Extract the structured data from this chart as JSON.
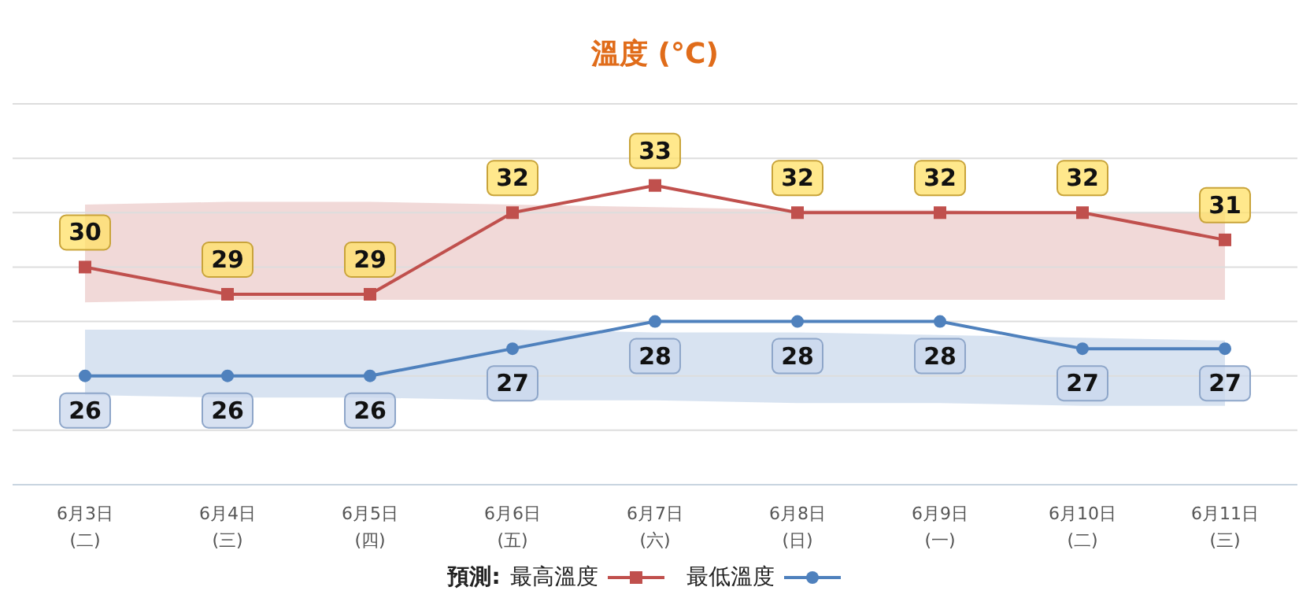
{
  "chart_data": {
    "type": "line",
    "title": "溫度 (°C)",
    "legend_title": "預測:",
    "categories": [
      "6月3日\n(二)",
      "6月4日\n(三)",
      "6月5日\n(四)",
      "6月6日\n(五)",
      "6月7日\n(六)",
      "6月8日\n(日)",
      "6月9日\n(一)",
      "6月10日\n(二)",
      "6月11日\n(三)"
    ],
    "series": [
      {
        "name": "最高溫度",
        "color": "#c0504d",
        "marker": "square",
        "values": [
          30,
          29,
          29,
          32,
          33,
          32,
          32,
          32,
          31
        ],
        "lower": [
          28.7,
          28.8,
          28.8,
          28.8,
          28.8,
          28.8,
          28.8,
          28.8,
          28.8
        ],
        "upper": [
          32.3,
          32.4,
          32.4,
          32.3,
          32.2,
          32.1,
          32.1,
          32.0,
          32.0
        ]
      },
      {
        "name": "最低溫度",
        "color": "#4f81bd",
        "marker": "circle",
        "values": [
          26,
          26,
          26,
          27,
          28,
          28,
          28,
          27,
          27
        ],
        "lower": [
          25.3,
          25.2,
          25.2,
          25.1,
          25.1,
          25.0,
          25.0,
          24.9,
          24.9
        ],
        "upper": [
          27.7,
          27.7,
          27.7,
          27.7,
          27.6,
          27.6,
          27.5,
          27.4,
          27.3
        ]
      }
    ],
    "ylim": [
      22,
      36
    ],
    "yticks": [
      {
        "value": 22,
        "label": null
      },
      {
        "value": 24,
        "label": null
      },
      {
        "value": 26,
        "label": null
      },
      {
        "value": 28,
        "label": null
      },
      {
        "value": 30,
        "label": null
      },
      {
        "value": 32,
        "label": null
      },
      {
        "value": 34,
        "label": null
      },
      {
        "value": 36,
        "label": null
      }
    ],
    "tick_labels": "x",
    "grid": "y",
    "legend": "bottom",
    "data_labels": true,
    "line_style": "solid"
  }
}
